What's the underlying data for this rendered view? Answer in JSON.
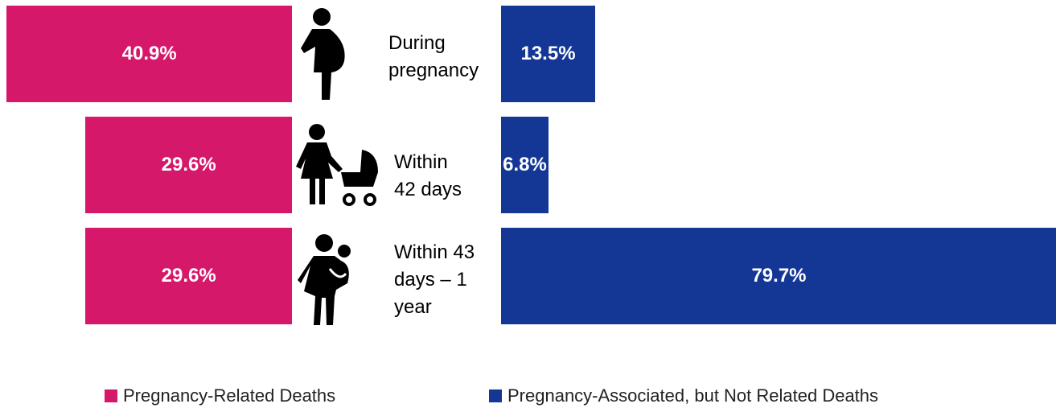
{
  "chart_data": {
    "type": "butterfly-bar",
    "categories": [
      "During pregnancy",
      "Within 42 days",
      "Within 43 days – 1 year"
    ],
    "series": [
      {
        "name": "Pregnancy-Related Deaths",
        "color": "#d6186a",
        "values": [
          40.9,
          29.6,
          29.6
        ],
        "value_labels": [
          "40.9%",
          "29.6%",
          "29.6%"
        ]
      },
      {
        "name": "Pregnancy-Associated, but Not Related Deaths",
        "color": "#143796",
        "values": [
          13.5,
          6.8,
          79.7
        ],
        "value_labels": [
          "13.5%",
          "6.8%",
          "79.7%"
        ]
      }
    ]
  }
}
